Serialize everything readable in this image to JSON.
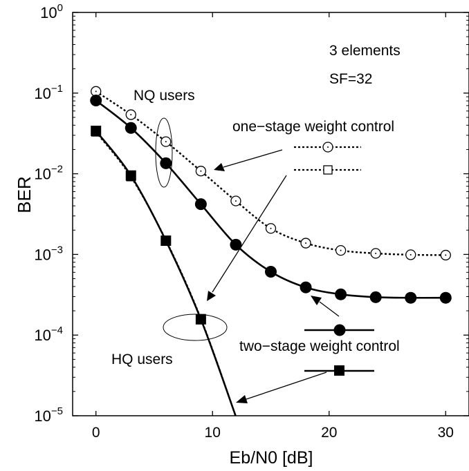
{
  "chart_data": {
    "type": "line",
    "xlabel": "Eb/N0 [dB]",
    "ylabel": "BER",
    "xlim": [
      -2,
      32
    ],
    "ylim": [
      1e-05,
      1
    ],
    "yscale": "log",
    "grid": false,
    "x_ticks": [
      0,
      10,
      20,
      30
    ],
    "y_ticks": [
      {
        "value": 1e-05,
        "base": "10",
        "exp": "−5"
      },
      {
        "value": 0.0001,
        "base": "10",
        "exp": "−4"
      },
      {
        "value": 0.001,
        "base": "10",
        "exp": "−3"
      },
      {
        "value": 0.01,
        "base": "10",
        "exp": "−2"
      },
      {
        "value": 0.1,
        "base": "10",
        "exp": "−1"
      },
      {
        "value": 1,
        "base": "10",
        "exp": "0"
      }
    ],
    "series": [
      {
        "name": "one-stage weight control (NQ users)",
        "style": "dotted",
        "marker": "open-circle",
        "x": [
          0,
          3,
          6,
          9,
          12,
          15,
          18,
          21,
          24,
          27,
          30
        ],
        "y": [
          0.105,
          0.054,
          0.025,
          0.0108,
          0.0046,
          0.0021,
          0.00138,
          0.00112,
          0.00103,
          0.00099,
          0.00098
        ]
      },
      {
        "name": "two-stage weight control (NQ users)",
        "style": "solid",
        "marker": "filled-circle",
        "x": [
          0,
          3,
          6,
          9,
          12,
          15,
          18,
          21,
          24,
          27,
          30
        ],
        "y": [
          0.081,
          0.037,
          0.0135,
          0.0042,
          0.00132,
          0.00061,
          0.00039,
          0.00032,
          0.000295,
          0.00029,
          0.00029
        ]
      },
      {
        "name": "one-stage weight control (HQ users)",
        "style": "dotted",
        "marker": "open-square",
        "x": [
          0,
          3,
          6,
          9,
          12
        ],
        "y": [
          0.033,
          0.0092,
          0.0015,
          0.00016,
          9.8e-06
        ]
      },
      {
        "name": "two-stage weight control (HQ users)",
        "style": "solid",
        "marker": "filled-square",
        "x": [
          0,
          3,
          6,
          9,
          12
        ],
        "y": [
          0.034,
          0.0095,
          0.00148,
          0.000157,
          9.8e-06
        ]
      }
    ],
    "annotations": {
      "config_line1": "3 elements",
      "config_line2": "SF=32",
      "nq_label": "NQ users",
      "hq_label": "HQ users",
      "one_stage_label": "one−stage weight control",
      "two_stage_label": "two−stage weight control"
    }
  }
}
